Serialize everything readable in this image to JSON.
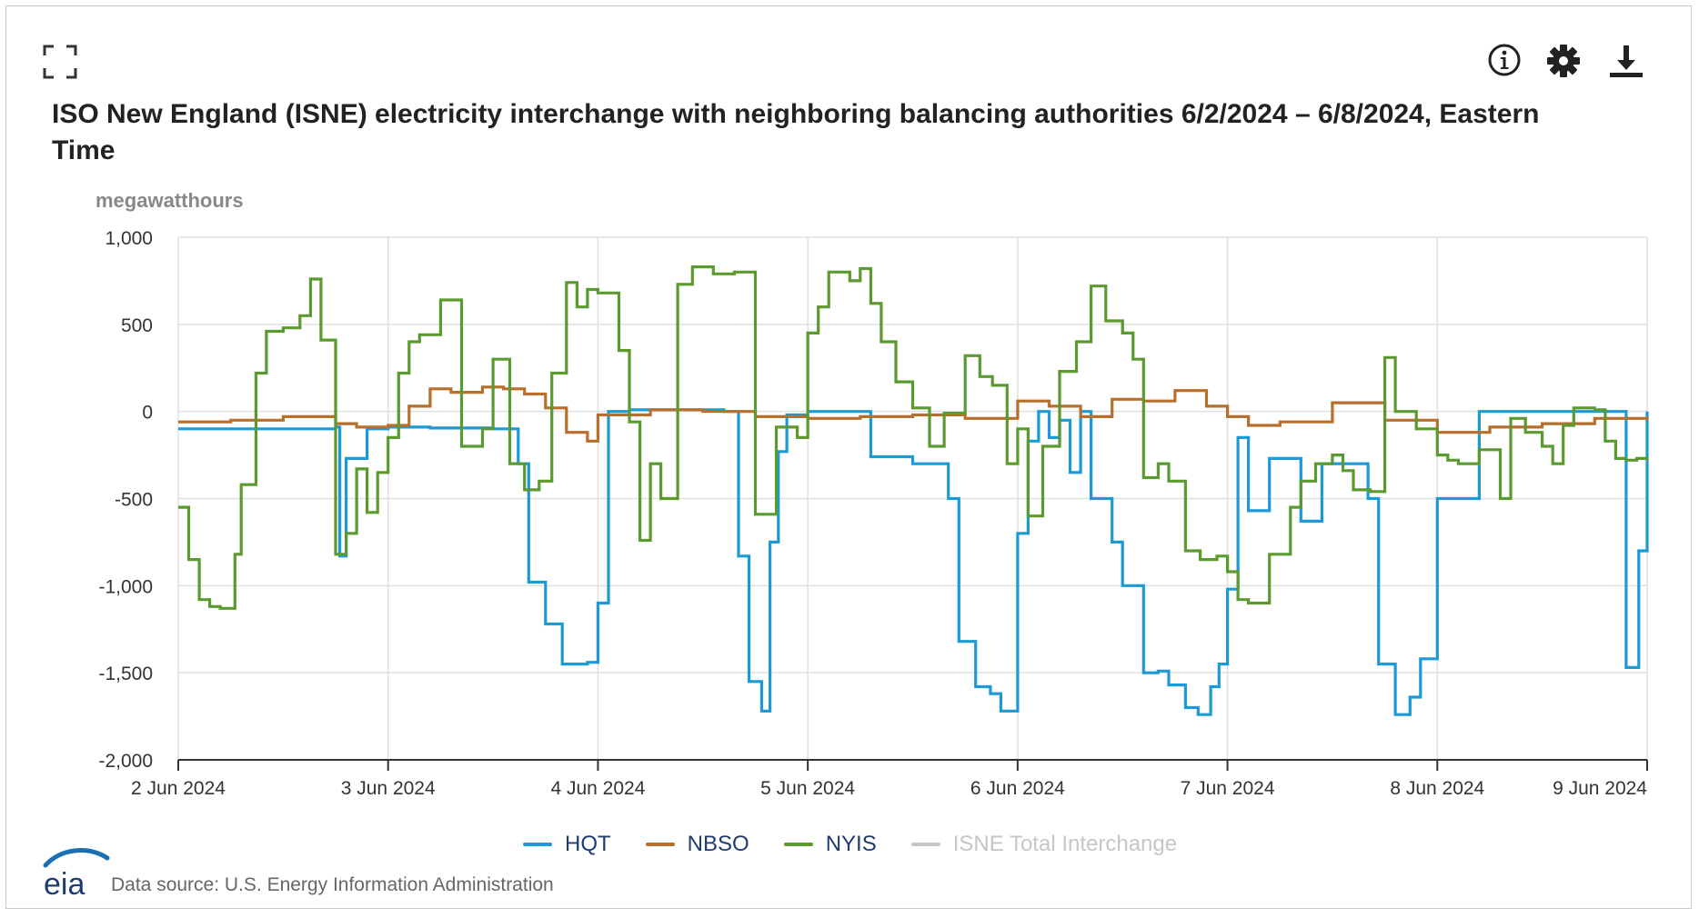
{
  "toolbar": {
    "expand_icon": "expand-icon",
    "info_icon": "info-icon",
    "settings_icon": "gear-icon",
    "download_icon": "download-icon"
  },
  "title": "ISO New England (ISNE) electricity interchange with neighboring balancing authorities 6/2/2024 – 6/8/2024, Eastern Time",
  "source": "Data source: U.S. Energy Information Administration",
  "logo_text": "eia",
  "chart_data": {
    "type": "line",
    "ylabel": "megawatthours",
    "ylim": [
      -2000,
      1000
    ],
    "yticks": [
      1000,
      500,
      0,
      -500,
      -1000,
      -1500,
      -2000
    ],
    "ytick_labels": [
      "1,000",
      "500",
      "0",
      "-500",
      "-1,000",
      "-1,500",
      "-2,000"
    ],
    "xlim": [
      0,
      7
    ],
    "xticks": [
      0,
      1,
      2,
      3,
      4,
      5,
      6,
      7
    ],
    "xtick_labels": [
      "2 Jun 2024",
      "3 Jun 2024",
      "4 Jun 2024",
      "5 Jun 2024",
      "6 Jun 2024",
      "7 Jun 2024",
      "8 Jun 2024",
      "9 Jun 2024"
    ],
    "grid": true,
    "legend_position": "bottom-center",
    "series": [
      {
        "name": "HQT",
        "color": "#1b9ad6",
        "visible": true,
        "x": [
          0,
          0.75,
          0.77,
          0.8,
          0.9,
          1,
          1.2,
          1.5,
          1.62,
          1.67,
          1.75,
          1.83,
          1.95,
          2,
          2.05,
          2.15,
          2.25,
          2.35,
          2.45,
          2.6,
          2.67,
          2.72,
          2.78,
          2.82,
          2.86,
          2.9,
          3,
          3.1,
          3.2,
          3.3,
          3.5,
          3.6,
          3.67,
          3.72,
          3.8,
          3.87,
          3.92,
          4,
          4.05,
          4.1,
          4.15,
          4.2,
          4.25,
          4.3,
          4.35,
          4.45,
          4.5,
          4.6,
          4.67,
          4.72,
          4.8,
          4.86,
          4.92,
          4.96,
          5,
          5.05,
          5.1,
          5.2,
          5.35,
          5.45,
          5.5,
          5.6,
          5.67,
          5.72,
          5.8,
          5.87,
          5.92,
          6,
          6.2,
          6.5,
          6.8,
          6.9,
          6.96,
          7
        ],
        "values": [
          -100,
          -90,
          -830,
          -270,
          -100,
          -90,
          -95,
          -100,
          -300,
          -980,
          -1220,
          -1450,
          -1440,
          -1100,
          0,
          10,
          10,
          10,
          10,
          0,
          -830,
          -1550,
          -1720,
          -750,
          -230,
          -20,
          0,
          0,
          0,
          -260,
          -300,
          -300,
          -500,
          -1320,
          -1580,
          -1620,
          -1720,
          -700,
          -170,
          0,
          -150,
          -50,
          -350,
          0,
          -500,
          -750,
          -1000,
          -1500,
          -1490,
          -1570,
          -1700,
          -1740,
          -1580,
          -1450,
          -1020,
          -150,
          -570,
          -270,
          -630,
          -300,
          -300,
          -300,
          -500,
          -1450,
          -1740,
          -1640,
          -1420,
          -500,
          0,
          0,
          0,
          -1470,
          -800,
          0
        ]
      },
      {
        "name": "NBSO",
        "color": "#b96f2c",
        "visible": true,
        "x": [
          0,
          0.25,
          0.5,
          0.75,
          0.85,
          1,
          1.1,
          1.2,
          1.3,
          1.45,
          1.55,
          1.65,
          1.75,
          1.85,
          1.95,
          2,
          2.25,
          2.5,
          2.75,
          3,
          3.25,
          3.5,
          3.75,
          4,
          4.15,
          4.3,
          4.45,
          4.6,
          4.75,
          4.9,
          5,
          5.1,
          5.25,
          5.5,
          5.75,
          6,
          6.25,
          6.5,
          6.75,
          7
        ],
        "values": [
          -60,
          -50,
          -30,
          -70,
          -90,
          -80,
          30,
          130,
          110,
          140,
          130,
          100,
          20,
          -120,
          -170,
          -20,
          10,
          0,
          -30,
          -40,
          -30,
          -20,
          -40,
          60,
          30,
          -30,
          70,
          60,
          120,
          30,
          -30,
          -80,
          -60,
          50,
          -50,
          -120,
          -90,
          -70,
          -40,
          -50
        ]
      },
      {
        "name": "NYIS",
        "color": "#5b9a2f",
        "visible": true,
        "x": [
          0,
          0.05,
          0.1,
          0.15,
          0.2,
          0.27,
          0.3,
          0.37,
          0.42,
          0.5,
          0.58,
          0.63,
          0.68,
          0.75,
          0.8,
          0.85,
          0.9,
          0.95,
          1,
          1.05,
          1.1,
          1.15,
          1.25,
          1.35,
          1.45,
          1.5,
          1.58,
          1.65,
          1.72,
          1.78,
          1.85,
          1.9,
          1.95,
          2,
          2.1,
          2.15,
          2.2,
          2.25,
          2.3,
          2.38,
          2.45,
          2.55,
          2.65,
          2.75,
          2.85,
          2.95,
          3,
          3.05,
          3.1,
          3.2,
          3.25,
          3.3,
          3.35,
          3.42,
          3.5,
          3.58,
          3.65,
          3.75,
          3.82,
          3.88,
          3.95,
          4,
          4.05,
          4.12,
          4.2,
          4.28,
          4.35,
          4.42,
          4.5,
          4.55,
          4.6,
          4.67,
          4.72,
          4.8,
          4.87,
          4.95,
          5,
          5.05,
          5.1,
          5.2,
          5.3,
          5.35,
          5.42,
          5.5,
          5.55,
          5.6,
          5.68,
          5.75,
          5.8,
          5.9,
          6,
          6.05,
          6.1,
          6.2,
          6.3,
          6.35,
          6.42,
          6.5,
          6.55,
          6.6,
          6.65,
          6.75,
          6.8,
          6.85,
          6.9,
          6.95,
          7
        ],
        "values": [
          -550,
          -850,
          -1080,
          -1120,
          -1130,
          -820,
          -420,
          220,
          460,
          480,
          550,
          760,
          410,
          -820,
          -700,
          -330,
          -580,
          -350,
          -150,
          220,
          400,
          440,
          640,
          -200,
          -100,
          300,
          -300,
          -450,
          -400,
          220,
          740,
          600,
          700,
          680,
          350,
          -60,
          -740,
          -300,
          -500,
          730,
          830,
          790,
          800,
          -590,
          -90,
          -150,
          450,
          600,
          800,
          750,
          820,
          620,
          400,
          170,
          20,
          -200,
          -10,
          320,
          200,
          150,
          -300,
          -100,
          -600,
          -200,
          230,
          400,
          720,
          520,
          450,
          300,
          -380,
          -300,
          -400,
          -800,
          -850,
          -830,
          -920,
          -1080,
          -1100,
          -820,
          -550,
          -400,
          -300,
          -250,
          -340,
          -450,
          -460,
          310,
          0,
          -100,
          -250,
          -280,
          -300,
          -220,
          -500,
          -40,
          -120,
          -200,
          -300,
          -80,
          20,
          10,
          -170,
          -270,
          -280,
          -270,
          -280
        ]
      },
      {
        "name": "ISNE Total Interchange",
        "color": "#c6c6c6",
        "visible": false,
        "x": [],
        "values": []
      }
    ]
  }
}
